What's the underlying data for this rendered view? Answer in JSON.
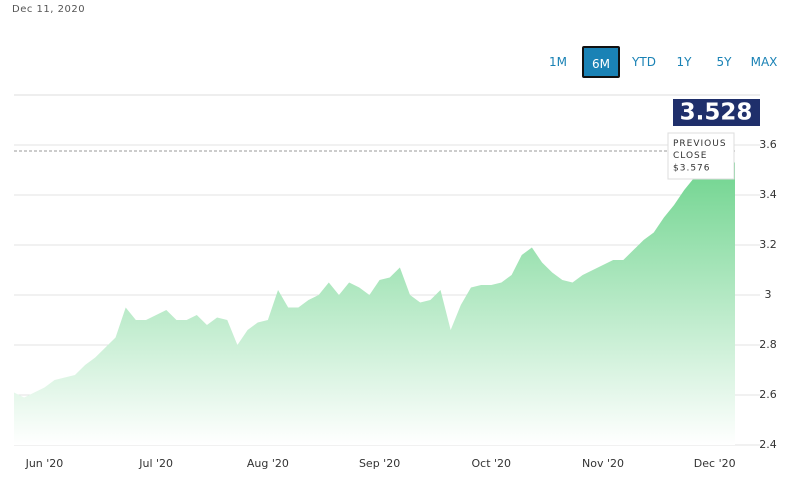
{
  "header": {
    "date": "Dec 11, 2020"
  },
  "range_buttons": {
    "labels": [
      "1M",
      "6M",
      "YTD",
      "1Y",
      "5Y",
      "MAX"
    ],
    "selected": "6M"
  },
  "chart_data": {
    "type": "area",
    "categories": [
      null,
      null,
      null,
      "Jun '20",
      null,
      null,
      null,
      null,
      null,
      null,
      null,
      null,
      null,
      null,
      "Jul '20",
      null,
      null,
      null,
      null,
      null,
      null,
      null,
      null,
      null,
      null,
      "Aug '20",
      null,
      null,
      null,
      null,
      null,
      null,
      null,
      null,
      null,
      null,
      "Sep '20",
      null,
      null,
      null,
      null,
      null,
      null,
      null,
      null,
      null,
      null,
      "Oct '20",
      null,
      null,
      null,
      null,
      null,
      null,
      null,
      null,
      null,
      null,
      "Nov '20",
      null,
      null,
      null,
      null,
      null,
      null,
      null,
      null,
      null,
      null,
      "Dec '20",
      null,
      null
    ],
    "values": [
      2.61,
      2.59,
      2.61,
      2.63,
      2.66,
      2.67,
      2.68,
      2.72,
      2.75,
      2.79,
      2.83,
      2.95,
      2.9,
      2.9,
      2.92,
      2.94,
      2.9,
      2.9,
      2.92,
      2.88,
      2.91,
      2.9,
      2.8,
      2.86,
      2.89,
      2.9,
      3.02,
      2.95,
      2.95,
      2.98,
      3.0,
      3.05,
      3.0,
      3.05,
      3.03,
      3.0,
      3.06,
      3.07,
      3.11,
      3.0,
      2.97,
      2.98,
      3.02,
      2.86,
      2.96,
      3.03,
      3.04,
      3.04,
      3.05,
      3.08,
      3.16,
      3.19,
      3.13,
      3.09,
      3.06,
      3.05,
      3.08,
      3.1,
      3.12,
      3.14,
      3.14,
      3.18,
      3.22,
      3.25,
      3.31,
      3.36,
      3.42,
      3.47,
      3.5,
      3.52,
      3.53,
      3.53
    ],
    "color": "#6fd48e",
    "ylim": [
      2.4,
      3.8
    ],
    "yticks": [
      2.4,
      2.6,
      2.8,
      3,
      3.2,
      3.4,
      3.6
    ],
    "grid": true,
    "last_value": 3.528,
    "previous_close": {
      "title": "PREVIOUS CLOSE",
      "value": 3.576,
      "label": "$3.576"
    }
  }
}
